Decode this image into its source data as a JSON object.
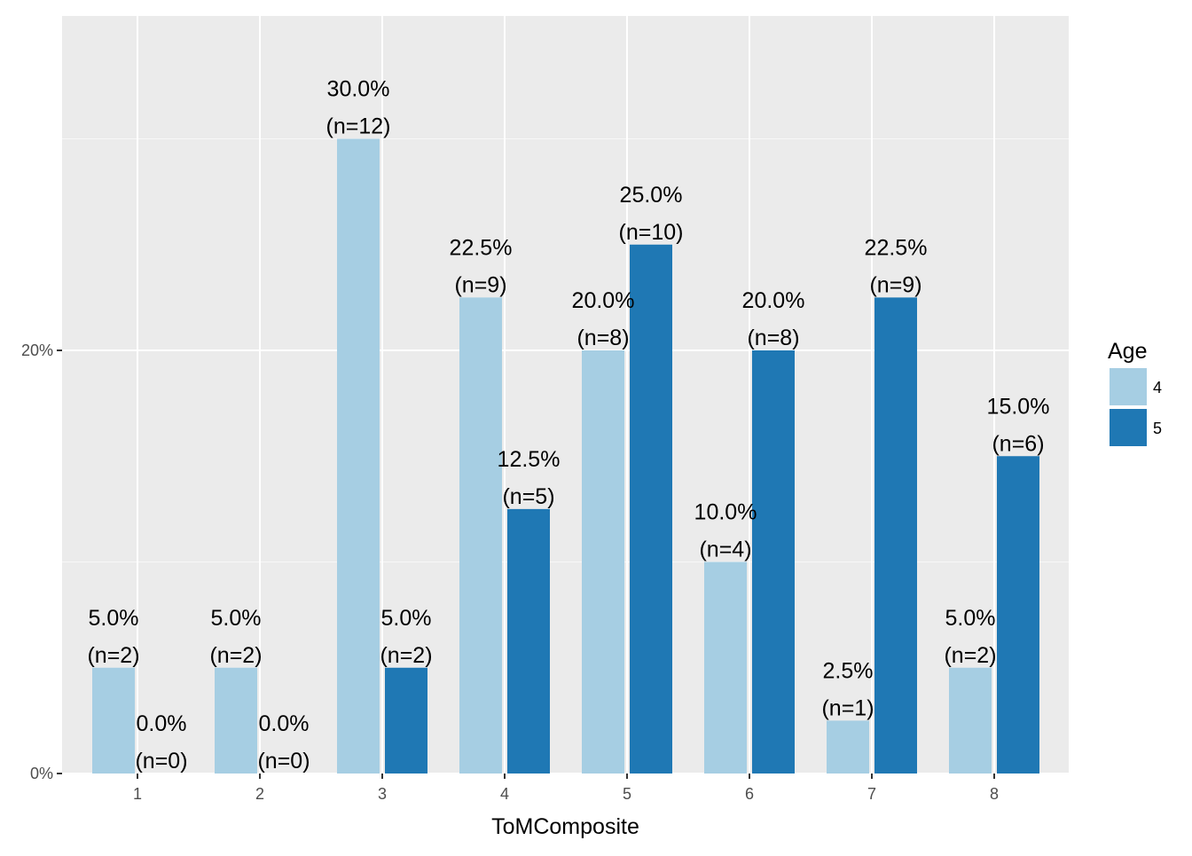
{
  "chart_data": {
    "type": "bar",
    "xlabel": "ToMComposite",
    "ylabel": "",
    "categories": [
      "1",
      "2",
      "3",
      "4",
      "5",
      "6",
      "7",
      "8"
    ],
    "ylim": [
      0,
      0.4
    ],
    "y_ticks": [
      {
        "value": 0,
        "label": "0%"
      },
      {
        "value": 0.2,
        "label": "20%"
      }
    ],
    "grid": true,
    "legend": {
      "title": "Age",
      "position": "right"
    },
    "series": [
      {
        "name": "4",
        "color": "#a6cee3",
        "values": [
          0.05,
          0.05,
          0.3,
          0.225,
          0.2,
          0.1,
          0.025,
          0.05
        ],
        "labels": [
          [
            "5.0%",
            "(n=2)"
          ],
          [
            "5.0%",
            "(n=2)"
          ],
          [
            "30.0%",
            "(n=12)"
          ],
          [
            "22.5%",
            "(n=9)"
          ],
          [
            "20.0%",
            "(n=8)"
          ],
          [
            "10.0%",
            "(n=4)"
          ],
          [
            "2.5%",
            "(n=1)"
          ],
          [
            "5.0%",
            "(n=2)"
          ]
        ]
      },
      {
        "name": "5",
        "color": "#1f78b4",
        "values": [
          0.0,
          0.0,
          0.05,
          0.125,
          0.25,
          0.2,
          0.225,
          0.15
        ],
        "labels": [
          [
            "0.0%",
            "(n=0)"
          ],
          [
            "0.0%",
            "(n=0)"
          ],
          [
            "5.0%",
            "(n=2)"
          ],
          [
            "12.5%",
            "(n=5)"
          ],
          [
            "25.0%",
            "(n=10)"
          ],
          [
            "20.0%",
            "(n=8)"
          ],
          [
            "22.5%",
            "(n=9)"
          ],
          [
            "15.0%",
            "(n=6)"
          ]
        ]
      }
    ],
    "colors": {
      "panel": "#ebebeb",
      "grid_major": "#ffffff",
      "grid_minor": "#f7f7f7"
    }
  }
}
